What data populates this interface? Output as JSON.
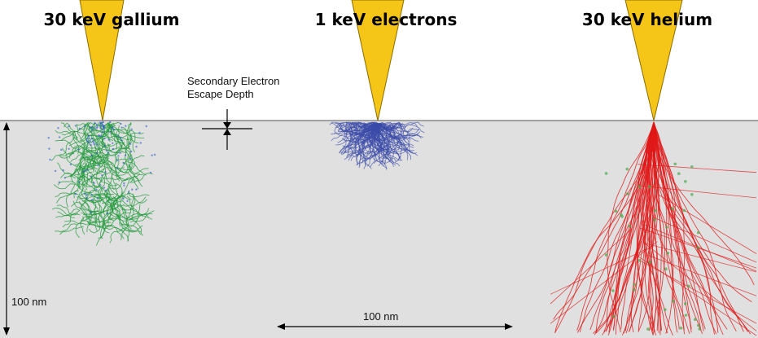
{
  "beams": [
    {
      "label": "30 keV gallium",
      "color": "#f5c518",
      "trajectory_color": "#1f9a3a"
    },
    {
      "label": "1 keV electrons",
      "color": "#f5c518",
      "trajectory_color": "#3a4aa8"
    },
    {
      "label": "30 keV helium",
      "color": "#f5c518",
      "trajectory_color": "#e01818"
    }
  ],
  "annotations": {
    "escape_depth_line1": "Secondary Electron",
    "escape_depth_line2": "Escape Depth",
    "vertical_scale": "100 nm",
    "horizontal_scale": "100 nm"
  },
  "colors": {
    "substrate": "#e0e0e0",
    "beam_fill": "#f5c518",
    "beam_stroke": "#8a6d00"
  }
}
